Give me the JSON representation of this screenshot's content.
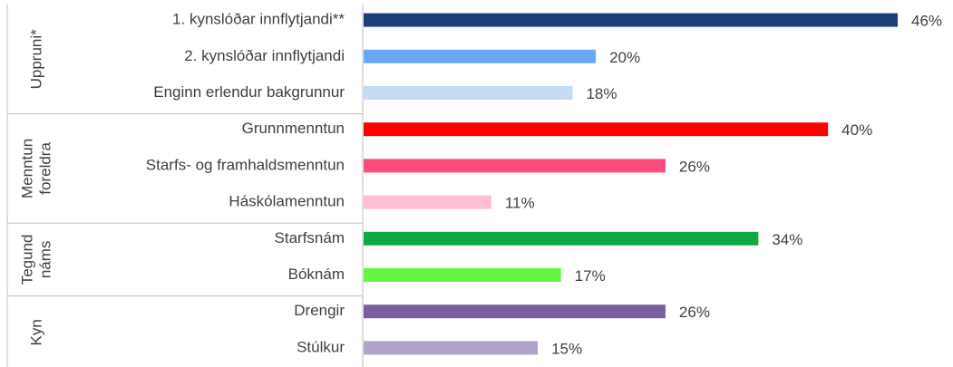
{
  "chart_data": {
    "type": "bar",
    "groups": [
      {
        "label": [
          "Uppruni*"
        ],
        "categories": [
          "1. kynslóðar innflytjandi**",
          "2. kynslóðar innflytjandi",
          "Enginn erlendur bakgrunnur"
        ],
        "values": [
          46,
          20,
          18
        ],
        "value_labels": [
          "46%",
          "20%",
          "18%"
        ],
        "colors": [
          "#1c3f7c",
          "#69a9f3",
          "#c6dbf4"
        ]
      },
      {
        "label": [
          "Menntun",
          "foreldra"
        ],
        "categories": [
          "Grunnmenntun",
          "Starfs- og framhaldsmenntun",
          "Háskólamenntun"
        ],
        "values": [
          40,
          26,
          11
        ],
        "value_labels": [
          "40%",
          "26%",
          "11%"
        ],
        "colors": [
          "#fe0000",
          "#ff4a7c",
          "#ffbed5"
        ]
      },
      {
        "label": [
          "Tegund",
          "náms"
        ],
        "categories": [
          "Starfsnám",
          "Bóknám"
        ],
        "values": [
          34,
          17
        ],
        "value_labels": [
          "34%",
          "17%"
        ],
        "colors": [
          "#13a846",
          "#67f443"
        ]
      },
      {
        "label": [
          "Kyn"
        ],
        "categories": [
          "Drengir",
          "Stúlkur"
        ],
        "values": [
          26,
          15
        ],
        "value_labels": [
          "26%",
          "15%"
        ],
        "colors": [
          "#7a5e9e",
          "#b0a2c9"
        ]
      }
    ]
  }
}
